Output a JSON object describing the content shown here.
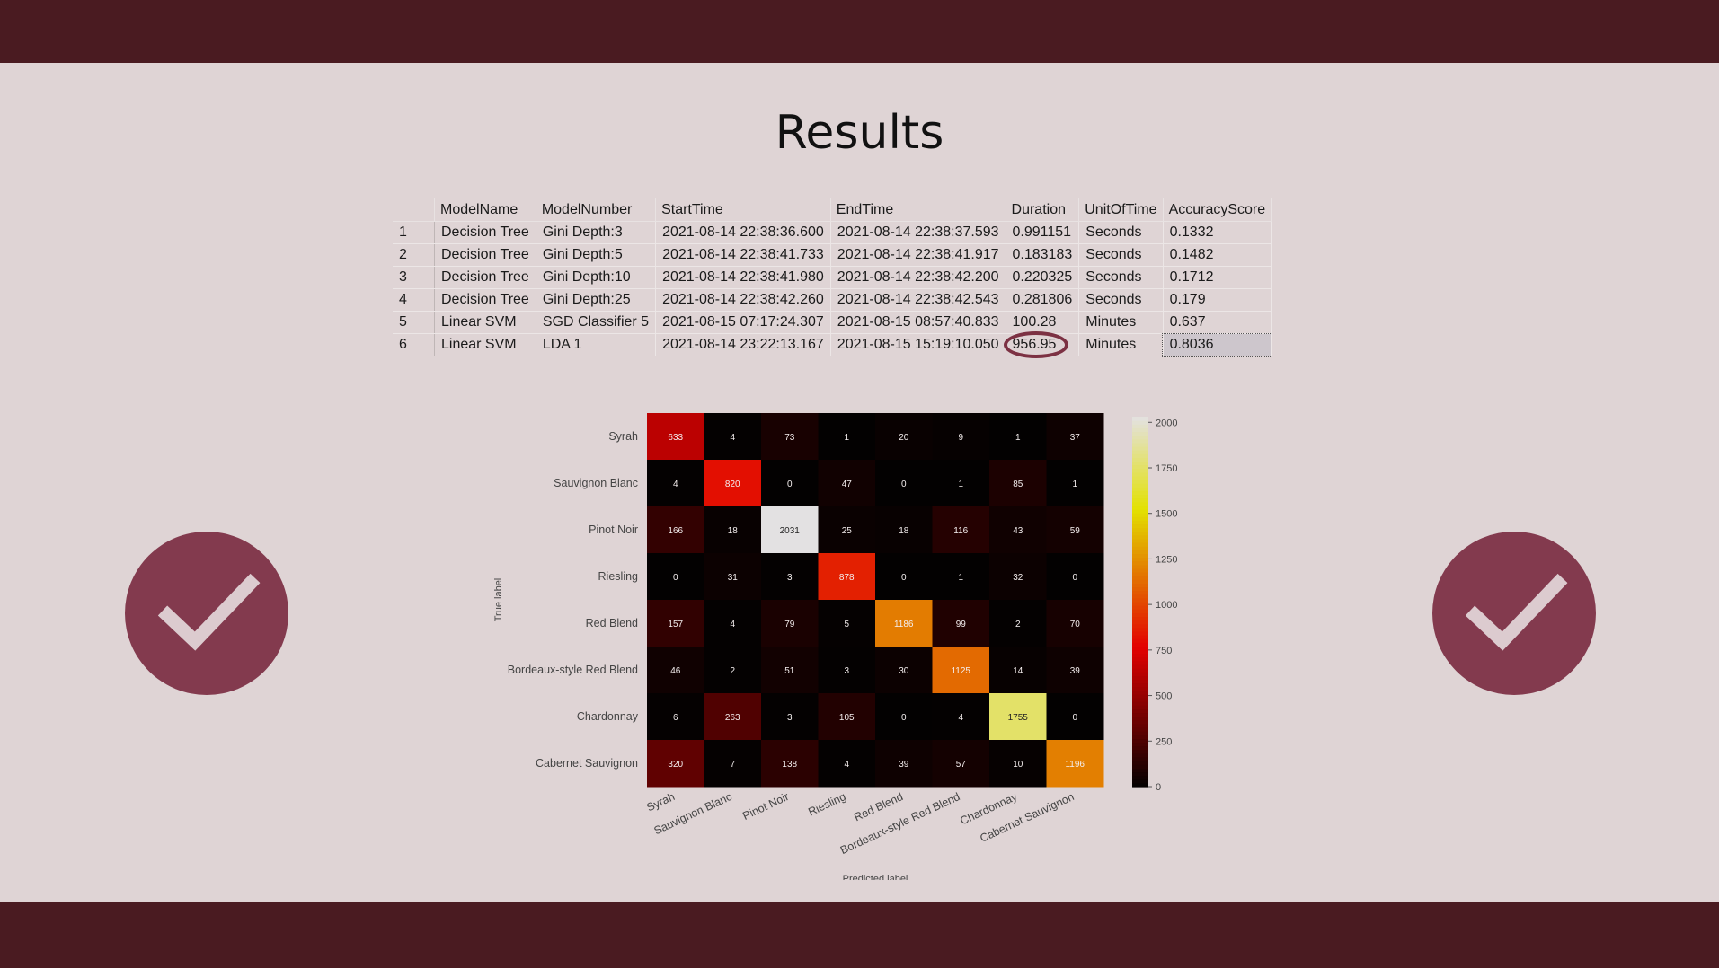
{
  "title": "Results",
  "table": {
    "columns": [
      "",
      "ModelName",
      "ModelNumber",
      "StartTime",
      "EndTime",
      "Duration",
      "UnitOfTime",
      "AccuracyScore"
    ],
    "rows": [
      [
        "1",
        "Decision Tree",
        "Gini Depth:3",
        "2021-08-14 22:38:36.600",
        "2021-08-14 22:38:37.593",
        "0.991151",
        "Seconds",
        "0.1332"
      ],
      [
        "2",
        "Decision Tree",
        "Gini Depth:5",
        "2021-08-14 22:38:41.733",
        "2021-08-14 22:38:41.917",
        "0.183183",
        "Seconds",
        "0.1482"
      ],
      [
        "3",
        "Decision Tree",
        "Gini Depth:10",
        "2021-08-14 22:38:41.980",
        "2021-08-14 22:38:42.200",
        "0.220325",
        "Seconds",
        "0.1712"
      ],
      [
        "4",
        "Decision Tree",
        "Gini Depth:25",
        "2021-08-14 22:38:42.260",
        "2021-08-14 22:38:42.543",
        "0.281806",
        "Seconds",
        "0.179"
      ],
      [
        "5",
        "Linear SVM",
        "SGD Classifier 5",
        "2021-08-15 07:17:24.307",
        "2021-08-15 08:57:40.833",
        "100.28",
        "Minutes",
        "0.637"
      ],
      [
        "6",
        "Linear SVM",
        "LDA 1",
        "2021-08-14 23:22:13.167",
        "2021-08-15 15:19:10.050",
        "956.95",
        "Minutes",
        "0.8036"
      ]
    ]
  },
  "icons": {
    "left": "checkmark-icon",
    "right": "checkmark-icon"
  },
  "colors": {
    "frame": "#4a1b21",
    "slide": "#dfd4d5",
    "accent": "#833a4e"
  },
  "chart_data": {
    "type": "heatmap",
    "xlabel": "Predicted label",
    "ylabel": "True label",
    "labels": [
      "Syrah",
      "Sauvignon Blanc",
      "Pinot Noir",
      "Riesling",
      "Red Blend",
      "Bordeaux-style Red Blend",
      "Chardonnay",
      "Cabernet Sauvignon"
    ],
    "matrix": [
      [
        633,
        4,
        73,
        1,
        20,
        9,
        1,
        37
      ],
      [
        4,
        820,
        0,
        47,
        0,
        1,
        85,
        1
      ],
      [
        166,
        18,
        2031,
        25,
        18,
        116,
        43,
        59
      ],
      [
        0,
        31,
        3,
        878,
        0,
        1,
        32,
        0
      ],
      [
        157,
        4,
        79,
        5,
        1186,
        99,
        2,
        70
      ],
      [
        46,
        2,
        51,
        3,
        30,
        1125,
        14,
        39
      ],
      [
        6,
        263,
        3,
        105,
        0,
        4,
        1755,
        0
      ],
      [
        320,
        7,
        138,
        4,
        39,
        57,
        10,
        1196
      ]
    ],
    "colorbar_ticks": [
      "0",
      "250",
      "500",
      "750",
      "1000",
      "1250",
      "1500",
      "1750",
      "2000"
    ],
    "vmin": 0,
    "vmax": 2031,
    "colormap": "hot"
  }
}
